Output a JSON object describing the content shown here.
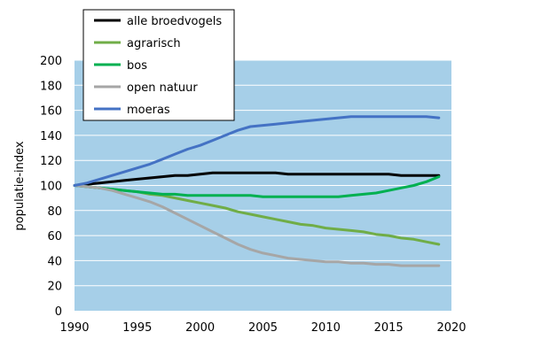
{
  "chart_data": {
    "type": "line",
    "ylabel": "populatie-index",
    "xlabel": "",
    "title": "",
    "xlim": [
      1990,
      2020
    ],
    "ylim": [
      0,
      200
    ],
    "xticks": [
      "1990",
      "1995",
      "2000",
      "2005",
      "2010",
      "2015",
      "2020"
    ],
    "yticks": [
      "0",
      "20",
      "40",
      "60",
      "80",
      "100",
      "120",
      "140",
      "160",
      "180",
      "200"
    ],
    "background": "#a6cfe8",
    "grid": "horizontal, white",
    "legend_position": "top-left",
    "x": [
      1990,
      1991,
      1992,
      1993,
      1994,
      1995,
      1996,
      1997,
      1998,
      1999,
      2000,
      2001,
      2002,
      2003,
      2004,
      2005,
      2006,
      2007,
      2008,
      2009,
      2010,
      2011,
      2012,
      2013,
      2014,
      2015,
      2016,
      2017,
      2018,
      2019
    ],
    "series": [
      {
        "name": "alle broedvogels",
        "color": "#000000",
        "values": [
          100,
          101,
          102,
          103,
          104,
          105,
          106,
          107,
          108,
          108,
          109,
          110,
          110,
          110,
          110,
          110,
          110,
          109,
          109,
          109,
          109,
          109,
          109,
          109,
          109,
          109,
          108,
          108,
          108,
          108
        ]
      },
      {
        "name": "agrarisch",
        "color": "#70ad47",
        "values": [
          100,
          99,
          98,
          97,
          96,
          95,
          93,
          92,
          90,
          88,
          86,
          84,
          82,
          79,
          77,
          75,
          73,
          71,
          69,
          68,
          66,
          65,
          64,
          63,
          61,
          60,
          58,
          57,
          55,
          53
        ]
      },
      {
        "name": "bos",
        "color": "#00b050",
        "values": [
          100,
          99,
          98,
          97,
          96,
          95,
          94,
          93,
          93,
          92,
          92,
          92,
          92,
          92,
          92,
          91,
          91,
          91,
          91,
          91,
          91,
          91,
          92,
          93,
          94,
          96,
          98,
          100,
          103,
          107
        ]
      },
      {
        "name": "open natuur",
        "color": "#a6a6a6",
        "values": [
          100,
          99,
          98,
          96,
          93,
          90,
          87,
          83,
          78,
          73,
          68,
          63,
          58,
          53,
          49,
          46,
          44,
          42,
          41,
          40,
          39,
          39,
          38,
          38,
          37,
          37,
          36,
          36,
          36,
          36
        ]
      },
      {
        "name": "moeras",
        "color": "#4472c4",
        "values": [
          100,
          102,
          105,
          108,
          111,
          114,
          117,
          121,
          125,
          129,
          132,
          136,
          140,
          144,
          147,
          148,
          149,
          150,
          151,
          152,
          153,
          154,
          155,
          155,
          155,
          155,
          155,
          155,
          155,
          154
        ]
      }
    ]
  }
}
